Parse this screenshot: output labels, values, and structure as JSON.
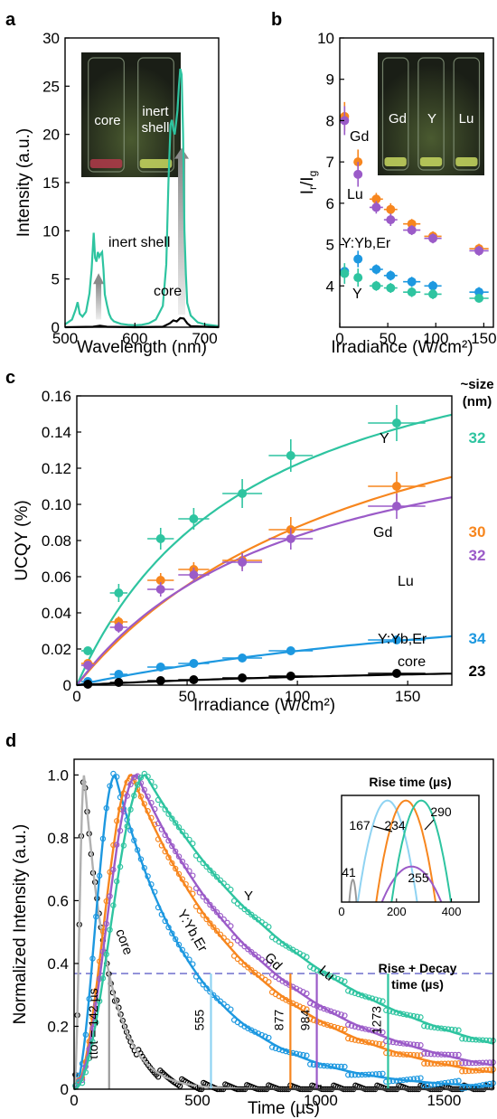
{
  "colors": {
    "Y": "#2ec4a0",
    "Gd": "#f7861e",
    "Lu": "#9b5bc8",
    "YbEr": "#1d98e0",
    "core": "#000000",
    "coreGray": "#9a9a9a",
    "YbErLight": "#8fd3f2"
  },
  "panels": {
    "a": "a",
    "b": "b",
    "c": "c",
    "d": "d"
  },
  "chart_data": [
    {
      "id": "a",
      "type": "line",
      "xlabel": "Wavelength (nm)",
      "ylabel": "Intensity (a.u.)",
      "xlim": [
        500,
        720
      ],
      "ylim": [
        0,
        30
      ],
      "xticks": [
        "500",
        "600",
        "700"
      ],
      "yticks": [
        "0",
        "5",
        "10",
        "15",
        "20",
        "25",
        "30"
      ],
      "annotations": {
        "inert_shell": "inert shell",
        "core": "core"
      },
      "photo_labels": [
        "core",
        "inert",
        "shell"
      ],
      "series": [
        {
          "name": "inert shell",
          "color_key": "Y",
          "x": [
            500,
            510,
            515,
            518,
            521,
            525,
            530,
            535,
            538,
            541,
            543,
            545,
            547,
            549,
            551,
            553,
            555,
            557,
            560,
            563,
            566,
            570,
            580,
            590,
            600,
            610,
            620,
            630,
            640,
            645,
            648,
            651,
            653,
            655,
            657,
            659,
            661,
            663,
            665,
            667,
            669,
            671,
            673,
            675,
            680,
            690,
            700,
            710,
            720
          ],
          "y": [
            0.3,
            0.8,
            1.8,
            2.6,
            1.4,
            1.1,
            1.6,
            3.5,
            6,
            9.8,
            7.2,
            6.8,
            7.8,
            7.3,
            7.6,
            7.8,
            6,
            3.4,
            2.3,
            1.4,
            0.9,
            0.6,
            0.35,
            0.25,
            0.2,
            0.25,
            0.4,
            0.8,
            2.2,
            6.5,
            15,
            21,
            21.5,
            20.5,
            20,
            21.2,
            22.5,
            25,
            26.8,
            26.2,
            20,
            10,
            5.5,
            2.5,
            1.2,
            0.5,
            0.3,
            0.2,
            0.1
          ]
        },
        {
          "name": "core",
          "color_key": "core",
          "x": [
            500,
            540,
            550,
            560,
            600,
            640,
            650,
            655,
            660,
            665,
            670,
            675,
            680,
            720
          ],
          "y": [
            0,
            0.05,
            0.15,
            0.05,
            0,
            0.05,
            0.4,
            0.7,
            0.6,
            0.95,
            0.9,
            0.4,
            0.1,
            0
          ]
        }
      ]
    },
    {
      "id": "b",
      "type": "scatter",
      "xlabel": "Irradiance (W/cm²)",
      "ylabel": "Ir/Ig",
      "xlim": [
        0,
        160
      ],
      "ylim": [
        3,
        10
      ],
      "xticks": [
        "0",
        "50",
        "100",
        "150"
      ],
      "yticks": [
        "4",
        "5",
        "6",
        "7",
        "8",
        "9",
        "10"
      ],
      "photo_labels": [
        "Gd",
        "Y",
        "Lu"
      ],
      "series": [
        {
          "name": "Gd",
          "color_key": "Gd",
          "x": [
            5,
            19,
            38,
            53,
            75,
            97,
            145
          ],
          "y": [
            8.1,
            7.0,
            6.1,
            5.85,
            5.5,
            5.2,
            4.9
          ],
          "xerr": [
            3,
            4,
            7,
            7,
            9,
            9,
            10
          ],
          "yerr": [
            0.35,
            0.3,
            0.15,
            0.15,
            0.12,
            0.12,
            0.12
          ]
        },
        {
          "name": "Lu",
          "color_key": "Lu",
          "x": [
            5,
            19,
            38,
            53,
            75,
            97,
            145
          ],
          "y": [
            8.0,
            6.7,
            5.9,
            5.6,
            5.35,
            5.15,
            4.85
          ],
          "xerr": [
            3,
            4,
            7,
            7,
            9,
            9,
            10
          ],
          "yerr": [
            0.35,
            0.3,
            0.15,
            0.15,
            0.12,
            0.12,
            0.12
          ]
        },
        {
          "name": "Y:Yb,Er",
          "color_key": "YbEr",
          "x": [
            5,
            19,
            38,
            53,
            75,
            97,
            145
          ],
          "y": [
            4.35,
            4.65,
            4.4,
            4.25,
            4.1,
            4.0,
            3.85
          ],
          "xerr": [
            3,
            4,
            7,
            7,
            9,
            9,
            10
          ],
          "yerr": [
            0.12,
            0.2,
            0.12,
            0.12,
            0.12,
            0.12,
            0.12
          ]
        },
        {
          "name": "Y",
          "color_key": "Y",
          "x": [
            5,
            19,
            38,
            53,
            75,
            97,
            145
          ],
          "y": [
            4.3,
            4.2,
            4.0,
            3.95,
            3.85,
            3.8,
            3.7
          ],
          "xerr": [
            3,
            4,
            7,
            7,
            9,
            9,
            10
          ],
          "yerr": [
            0.25,
            0.22,
            0.12,
            0.12,
            0.12,
            0.12,
            0.1
          ]
        }
      ],
      "labels": {
        "Gd": "Gd",
        "Lu": "Lu",
        "YbEr": "Y:Yb,Er",
        "Y": "Y"
      }
    },
    {
      "id": "c",
      "type": "scatter",
      "xlabel": "Irradiance (W/cm²)",
      "ylabel": "UCQY (%)",
      "xlim": [
        0,
        170
      ],
      "ylim": [
        0,
        0.16
      ],
      "xticks": [
        "0",
        "50",
        "100",
        "150"
      ],
      "yticks": [
        "0",
        "0.02",
        "0.04",
        "0.06",
        "0.08",
        "0.10",
        "0.12",
        "0.14",
        "0.16"
      ],
      "size_header": [
        "~size",
        "(nm)"
      ],
      "sizes": [
        {
          "value": "32",
          "color_key": "Y"
        },
        {
          "value": "30",
          "color_key": "Gd"
        },
        {
          "value": "32",
          "color_key": "Lu"
        },
        {
          "value": "34",
          "color_key": "YbEr"
        },
        {
          "value": "23",
          "color_key": "core"
        }
      ],
      "series": [
        {
          "name": "Y",
          "color_key": "Y",
          "x": [
            5,
            19,
            38,
            53,
            75,
            97,
            145
          ],
          "y": [
            0.019,
            0.051,
            0.081,
            0.092,
            0.106,
            0.127,
            0.145
          ],
          "xerr": [
            3,
            4,
            6,
            7,
            9,
            10,
            13
          ],
          "yerr": [
            0.002,
            0.005,
            0.006,
            0.006,
            0.008,
            0.009,
            0.01
          ],
          "fit": {
            "a": 0.22,
            "b": 80
          }
        },
        {
          "name": "Gd",
          "color_key": "Gd",
          "x": [
            5,
            19,
            38,
            53,
            75,
            97,
            145
          ],
          "y": [
            0.012,
            0.035,
            0.058,
            0.064,
            0.069,
            0.086,
            0.11
          ],
          "xerr": [
            3,
            4,
            6,
            7,
            9,
            10,
            13
          ],
          "yerr": [
            0.002,
            0.003,
            0.004,
            0.004,
            0.005,
            0.007,
            0.008
          ],
          "fit": {
            "a": 0.21,
            "b": 140
          }
        },
        {
          "name": "Lu",
          "color_key": "Lu",
          "x": [
            5,
            19,
            38,
            53,
            75,
            97,
            145
          ],
          "y": [
            0.011,
            0.032,
            0.053,
            0.061,
            0.068,
            0.081,
            0.099
          ],
          "xerr": [
            3,
            4,
            6,
            7,
            9,
            10,
            13
          ],
          "yerr": [
            0.002,
            0.003,
            0.004,
            0.004,
            0.005,
            0.006,
            0.007
          ],
          "fit": {
            "a": 0.165,
            "b": 100
          }
        },
        {
          "name": "Y:Yb,Er",
          "color_key": "YbEr",
          "x": [
            5,
            19,
            38,
            53,
            75,
            97,
            145
          ],
          "y": [
            0.002,
            0.006,
            0.01,
            0.012,
            0.015,
            0.019,
            0.025
          ],
          "xerr": [
            3,
            4,
            6,
            7,
            9,
            10,
            13
          ],
          "yerr": [
            0.0005,
            0.001,
            0.001,
            0.001,
            0.001,
            0.001,
            0.0015
          ],
          "fit": {
            "a": 0.07,
            "b": 270
          }
        },
        {
          "name": "core",
          "color_key": "core",
          "x": [
            5,
            19,
            38,
            53,
            75,
            97,
            145
          ],
          "y": [
            0.0005,
            0.0015,
            0.0025,
            0.003,
            0.004,
            0.005,
            0.0065
          ],
          "xerr": [
            3,
            4,
            6,
            7,
            9,
            10,
            13
          ],
          "yerr": [
            0.0002,
            0.0003,
            0.0003,
            0.0003,
            0.0004,
            0.0004,
            0.0005
          ],
          "fit": {
            "a": 0.015,
            "b": 230
          }
        }
      ],
      "labels": {
        "Y": "Y",
        "Gd": "Gd",
        "Lu": "Lu",
        "YbEr": "Y:Yb,Er",
        "core": "core"
      }
    },
    {
      "id": "d",
      "type": "line",
      "xlabel": "Time (µs)",
      "ylabel": "Normalized Intensity (a.u.)",
      "xlim": [
        0,
        1700
      ],
      "ylim": [
        0,
        1.05
      ],
      "xticks": [
        "0",
        "500",
        "1000",
        "1500"
      ],
      "yticks": [
        "0",
        "0.2",
        "0.4",
        "0.6",
        "0.8",
        "1.0"
      ],
      "threshold": 0.368,
      "rise_decay_label": [
        "Rise + Decay",
        "time (µs)"
      ],
      "tau_label": "τtot = 142 µs",
      "decay_markers": [
        {
          "x": 142,
          "label": "",
          "color_key": "coreGray"
        },
        {
          "x": 555,
          "label": "555",
          "color_key": "YbErLight"
        },
        {
          "x": 877,
          "label": "877",
          "color_key": "Gd"
        },
        {
          "x": 984,
          "label": "984",
          "color_key": "Lu"
        },
        {
          "x": 1273,
          "label": "1273",
          "color_key": "Y"
        }
      ],
      "series": [
        {
          "name": "core",
          "color_key": "core",
          "peak": 41,
          "decay": 101
        },
        {
          "name": "Y:Yb,Er",
          "color_key": "YbEr",
          "peak": 167,
          "decay": 330
        },
        {
          "name": "Gd",
          "color_key": "Gd",
          "peak": 234,
          "decay": 500
        },
        {
          "name": "Lu",
          "color_key": "Lu",
          "peak": 255,
          "decay": 560
        },
        {
          "name": "Y",
          "color_key": "Y",
          "peak": 290,
          "decay": 730
        }
      ],
      "labels": {
        "Y": "Y",
        "YbEr": "Y:Yb,Er",
        "core": "core",
        "Gd": "Gd",
        "Lu": "Lu"
      },
      "inset": {
        "title": "Rise time (µs)",
        "xlim": [
          0,
          500
        ],
        "xticks": [
          "0",
          "200",
          "400"
        ],
        "peaks": [
          {
            "value": 41,
            "color_key": "coreGray"
          },
          {
            "value": 167,
            "color_key": "YbErLight"
          },
          {
            "value": 234,
            "color_key": "Gd"
          },
          {
            "value": 255,
            "color_key": "Lu"
          },
          {
            "value": 290,
            "color_key": "Y"
          }
        ]
      }
    }
  ]
}
